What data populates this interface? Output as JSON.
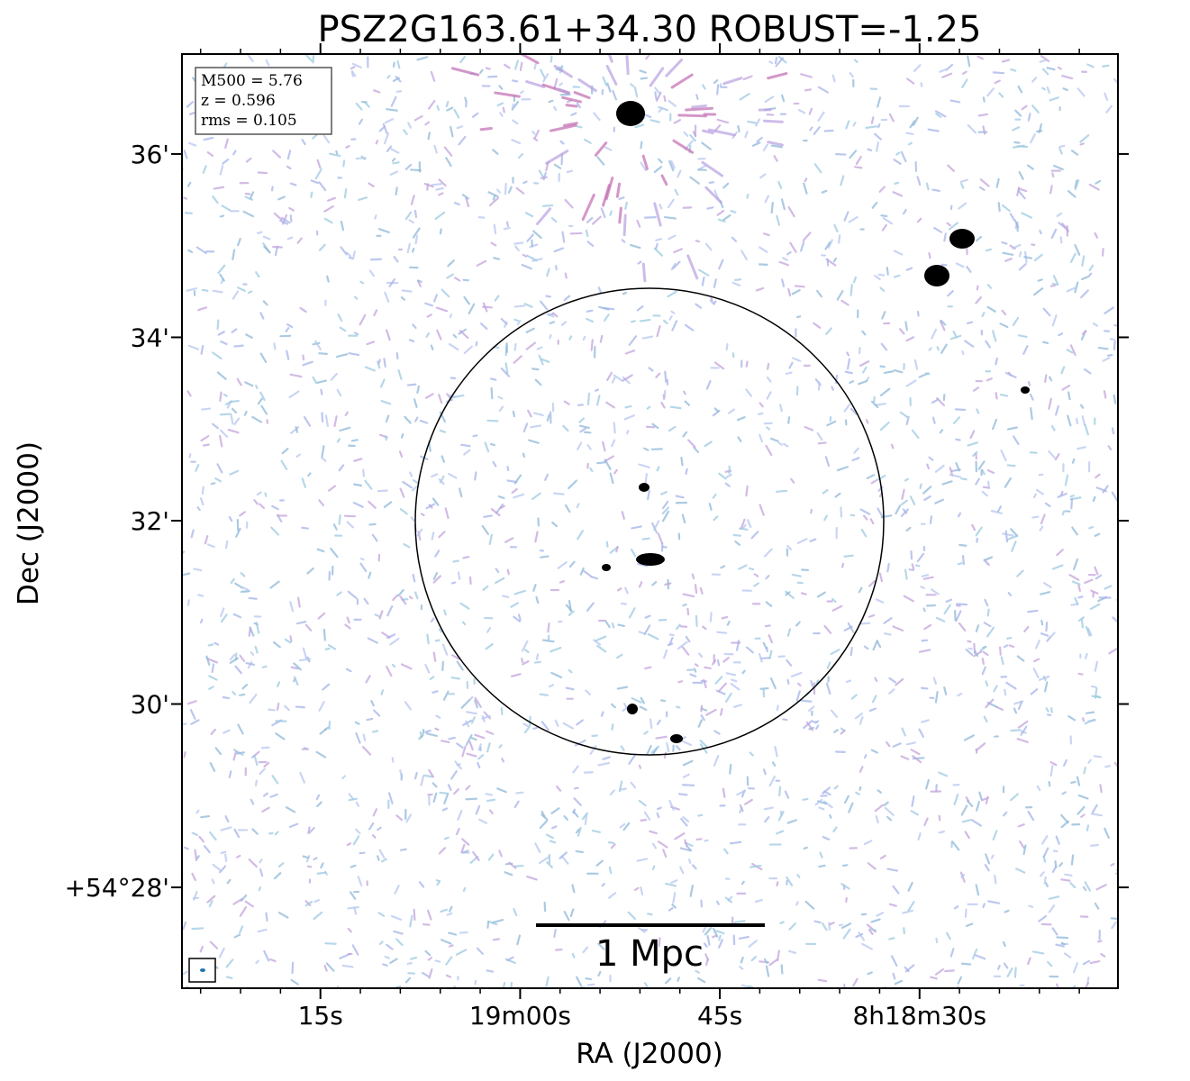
{
  "chart_data": {
    "type": "image",
    "title": "PSZ2G163.61+34.30 ROBUST=-1.25",
    "x_label": "RA (J2000)",
    "y_label": "Dec (J2000)",
    "xlim": [
      85.4,
      15.1
    ],
    "ylim": [
      26.9,
      37.09
    ],
    "xticks": [
      {
        "value": 75,
        "label": "15s"
      },
      {
        "value": 60,
        "label": "19m00s"
      },
      {
        "value": 45,
        "label": "45s"
      },
      {
        "value": 30,
        "label": "8h18m30s"
      }
    ],
    "yticks": [
      {
        "value": 28,
        "label": "+54°28'"
      },
      {
        "value": 30,
        "label": "30'"
      },
      {
        "value": 32,
        "label": "32'"
      },
      {
        "value": 34,
        "label": "34'"
      },
      {
        "value": 36,
        "label": "36'"
      }
    ],
    "annotations": [
      "M500 = 5.76",
      "z = 0.596",
      "rms = 0.105"
    ],
    "scale_bar_label": "1 Mpc"
  }
}
